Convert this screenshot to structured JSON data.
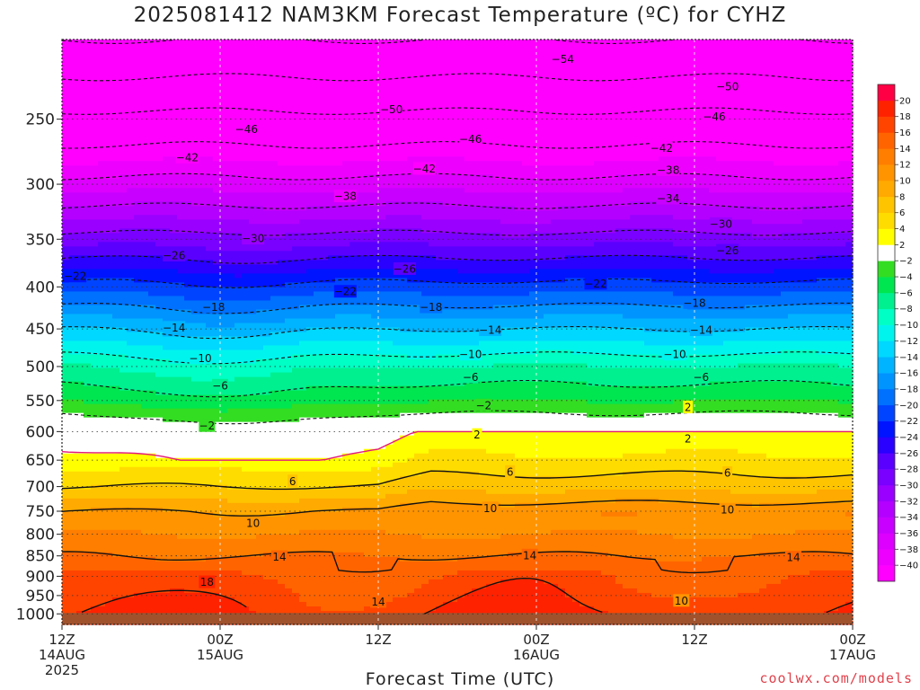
{
  "header": {
    "title": "2025081412 NAM3KM Forecast Temperature (ºC) for CYHZ"
  },
  "footer": {
    "xlabel": "Forecast Time (UTC)",
    "credit": "coolwx.com/models"
  },
  "chart_data": {
    "type": "heatmap",
    "title": "2025081412 NAM3KM Forecast Temperature (ºC) for CYHZ",
    "xlabel": "Forecast Time (UTC)",
    "ylabel": "",
    "x_hours": [
      0,
      60
    ],
    "x_ticks": [
      {
        "hour": 0,
        "lines": [
          "12Z",
          "14AUG",
          "2025"
        ]
      },
      {
        "hour": 12,
        "lines": [
          "00Z",
          "15AUG"
        ]
      },
      {
        "hour": 24,
        "lines": [
          "12Z"
        ]
      },
      {
        "hour": 36,
        "lines": [
          "00Z",
          "16AUG"
        ]
      },
      {
        "hour": 48,
        "lines": [
          "12Z"
        ]
      },
      {
        "hour": 60,
        "lines": [
          "00Z",
          "17AUG"
        ]
      }
    ],
    "y_ticks": [
      250,
      300,
      350,
      400,
      450,
      500,
      550,
      600,
      650,
      700,
      750,
      800,
      850,
      900,
      950,
      1000
    ],
    "pressure_range_hpa": [
      200,
      1030
    ],
    "colorbar": {
      "levels": [
        -40,
        -38,
        -36,
        -34,
        -32,
        -30,
        -28,
        -26,
        -24,
        -22,
        -20,
        -18,
        -16,
        -14,
        -12,
        -10,
        -8,
        -6,
        -4,
        -2,
        2,
        4,
        6,
        8,
        10,
        12,
        14,
        16,
        18,
        20
      ],
      "colors": [
        "#ff00ff",
        "#ee00ff",
        "#dd00ff",
        "#c800ff",
        "#b400ff",
        "#9a00ff",
        "#7a00ff",
        "#5a00ff",
        "#2a00ff",
        "#0014ff",
        "#0044ff",
        "#0070ff",
        "#0094ff",
        "#00b4ff",
        "#00d8ff",
        "#00f4ee",
        "#00ffc4",
        "#00f090",
        "#00e650",
        "#33dd22",
        "#ffffff",
        "#ffff00",
        "#ffdc00",
        "#ffc400",
        "#ffaa00",
        "#ff9400",
        "#ff7e00",
        "#ff6400",
        "#ff4400",
        "#ff2200",
        "#ff0044"
      ]
    },
    "profile_hour_0": [
      {
        "p": 1000,
        "t": 18
      },
      {
        "p": 950,
        "t": 17
      },
      {
        "p": 900,
        "t": 16
      },
      {
        "p": 850,
        "t": 14
      },
      {
        "p": 800,
        "t": 12
      },
      {
        "p": 750,
        "t": 10
      },
      {
        "p": 700,
        "t": 6
      },
      {
        "p": 650,
        "t": 3
      },
      {
        "p": 600,
        "t": 1
      },
      {
        "p": 550,
        "t": -4
      },
      {
        "p": 500,
        "t": -8
      },
      {
        "p": 450,
        "t": -14
      },
      {
        "p": 400,
        "t": -21
      },
      {
        "p": 350,
        "t": -29
      },
      {
        "p": 300,
        "t": -37
      },
      {
        "p": 250,
        "t": -45
      },
      {
        "p": 200,
        "t": -54
      }
    ],
    "contour_labels": [
      {
        "value": -54,
        "hour": 38.0,
        "p": 211
      },
      {
        "value": -50,
        "hour": 50.5,
        "p": 228
      },
      {
        "value": -50,
        "hour": 25.0,
        "p": 243
      },
      {
        "value": -46,
        "hour": 14.0,
        "p": 257
      },
      {
        "value": -46,
        "hour": 31.0,
        "p": 264
      },
      {
        "value": -46,
        "hour": 49.5,
        "p": 248
      },
      {
        "value": -42,
        "hour": 9.5,
        "p": 278
      },
      {
        "value": -42,
        "hour": 27.5,
        "p": 287
      },
      {
        "value": -42,
        "hour": 45.5,
        "p": 271
      },
      {
        "value": -38,
        "hour": 21.5,
        "p": 310
      },
      {
        "value": -38,
        "hour": 46.0,
        "p": 288
      },
      {
        "value": -34,
        "hour": 46.0,
        "p": 312
      },
      {
        "value": -30,
        "hour": 14.5,
        "p": 349
      },
      {
        "value": -30,
        "hour": 50.0,
        "p": 335
      },
      {
        "value": -26,
        "hour": 8.5,
        "p": 366
      },
      {
        "value": -26,
        "hour": 26.0,
        "p": 380
      },
      {
        "value": -26,
        "hour": 50.5,
        "p": 361
      },
      {
        "value": -22,
        "hour": 1.0,
        "p": 388
      },
      {
        "value": -22,
        "hour": 21.5,
        "p": 405
      },
      {
        "value": -22,
        "hour": 40.5,
        "p": 396
      },
      {
        "value": -18,
        "hour": 11.5,
        "p": 423
      },
      {
        "value": -18,
        "hour": 28.0,
        "p": 423
      },
      {
        "value": -18,
        "hour": 48.0,
        "p": 418
      },
      {
        "value": -14,
        "hour": 8.5,
        "p": 448
      },
      {
        "value": -14,
        "hour": 32.5,
        "p": 451
      },
      {
        "value": -14,
        "hour": 48.5,
        "p": 451
      },
      {
        "value": -10,
        "hour": 10.5,
        "p": 488
      },
      {
        "value": -10,
        "hour": 31.0,
        "p": 483
      },
      {
        "value": -10,
        "hour": 46.5,
        "p": 483
      },
      {
        "value": -6,
        "hour": 12.0,
        "p": 527
      },
      {
        "value": -6,
        "hour": 31.0,
        "p": 515
      },
      {
        "value": -6,
        "hour": 48.5,
        "p": 515
      },
      {
        "value": -2,
        "hour": 11.0,
        "p": 590
      },
      {
        "value": -2,
        "hour": 32.0,
        "p": 557
      },
      {
        "value": 2,
        "hour": 47.5,
        "p": 560
      },
      {
        "value": 2,
        "hour": 31.5,
        "p": 605
      },
      {
        "value": 2,
        "hour": 47.5,
        "p": 612
      },
      {
        "value": 6,
        "hour": 17.5,
        "p": 689
      },
      {
        "value": 6,
        "hour": 34.0,
        "p": 671
      },
      {
        "value": 6,
        "hour": 50.5,
        "p": 673
      },
      {
        "value": 10,
        "hour": 14.5,
        "p": 775
      },
      {
        "value": 10,
        "hour": 32.5,
        "p": 743
      },
      {
        "value": 10,
        "hour": 50.5,
        "p": 746
      },
      {
        "value": 10,
        "hour": 47.0,
        "p": 963
      },
      {
        "value": 14,
        "hour": 16.5,
        "p": 852
      },
      {
        "value": 14,
        "hour": 35.5,
        "p": 848
      },
      {
        "value": 14,
        "hour": 55.5,
        "p": 853
      },
      {
        "value": 14,
        "hour": 24.0,
        "p": 966
      },
      {
        "value": 18,
        "hour": 11.0,
        "p": 914
      }
    ]
  }
}
